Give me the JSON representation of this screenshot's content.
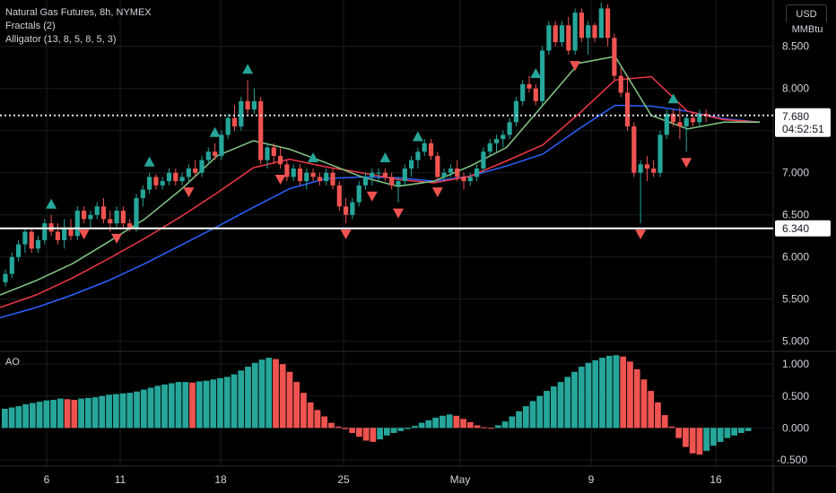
{
  "header": {
    "title": "Natural Gas Futures, 8h, NYMEX",
    "fractals_label": "Fractals (2)",
    "alligator_label": "Alligator (13, 8, 5, 8, 5, 3)",
    "currency_button": "USD",
    "unit": "MMBtu"
  },
  "colors": {
    "background": "#000000",
    "up": "#26a69a",
    "down": "#ef5350",
    "jaw": "#2962ff",
    "teeth": "#f23645",
    "lips": "#81c784",
    "grid": "#1a1c22"
  },
  "chart_data": [
    {
      "type": "candlestick",
      "title": "Natural Gas Futures, 8h, NYMEX",
      "y_ticks": [
        "8.500",
        "8.000",
        "7.500",
        "7.000",
        "6.500",
        "6.000",
        "5.500",
        "5.000"
      ],
      "ylim": [
        4.88,
        9.05
      ],
      "x_ticks": [
        "6",
        "11",
        "18",
        "25",
        "May",
        "9",
        "16"
      ],
      "last_price": {
        "value": 7.68,
        "label": "7.680",
        "countdown": "04:52:51"
      },
      "horizontal_line": {
        "value": 6.34,
        "label": "6.340"
      },
      "candles": [
        [
          5.7,
          5.85,
          5.65,
          5.8
        ],
        [
          5.8,
          6.05,
          5.75,
          6.0
        ],
        [
          6.0,
          6.2,
          5.95,
          6.15
        ],
        [
          6.15,
          6.35,
          6.05,
          6.3
        ],
        [
          6.3,
          6.35,
          6.05,
          6.1
        ],
        [
          6.1,
          6.25,
          6.05,
          6.2
        ],
        [
          6.2,
          6.45,
          6.15,
          6.4
        ],
        [
          6.4,
          6.5,
          6.25,
          6.3
        ],
        [
          6.3,
          6.4,
          6.15,
          6.2
        ],
        [
          6.2,
          6.45,
          6.1,
          6.35
        ],
        [
          6.35,
          6.45,
          6.2,
          6.25
        ],
        [
          6.25,
          6.6,
          6.2,
          6.55
        ],
        [
          6.55,
          6.6,
          6.4,
          6.45
        ],
        [
          6.45,
          6.55,
          6.35,
          6.5
        ],
        [
          6.5,
          6.65,
          6.45,
          6.6
        ],
        [
          6.6,
          6.7,
          6.4,
          6.45
        ],
        [
          6.45,
          6.55,
          6.3,
          6.4
        ],
        [
          6.4,
          6.6,
          6.35,
          6.55
        ],
        [
          6.55,
          6.6,
          6.35,
          6.4
        ],
        [
          6.4,
          6.45,
          6.3,
          6.35
        ],
        [
          6.35,
          6.75,
          6.3,
          6.7
        ],
        [
          6.7,
          6.85,
          6.6,
          6.8
        ],
        [
          6.8,
          7.0,
          6.75,
          6.95
        ],
        [
          6.95,
          6.98,
          6.8,
          6.85
        ],
        [
          6.85,
          6.95,
          6.8,
          6.9
        ],
        [
          6.9,
          7.05,
          6.85,
          7.0
        ],
        [
          7.0,
          7.05,
          6.85,
          6.9
        ],
        [
          6.9,
          7.0,
          6.85,
          6.95
        ],
        [
          6.95,
          7.1,
          6.9,
          7.05
        ],
        [
          7.05,
          7.15,
          6.95,
          7.0
        ],
        [
          7.0,
          7.2,
          6.95,
          7.15
        ],
        [
          7.15,
          7.3,
          7.1,
          7.25
        ],
        [
          7.25,
          7.35,
          7.15,
          7.2
        ],
        [
          7.2,
          7.5,
          7.15,
          7.45
        ],
        [
          7.45,
          7.7,
          7.4,
          7.65
        ],
        [
          7.65,
          7.8,
          7.5,
          7.55
        ],
        [
          7.55,
          7.9,
          7.5,
          7.85
        ],
        [
          7.85,
          8.1,
          7.7,
          7.75
        ],
        [
          7.75,
          8.0,
          7.7,
          7.85
        ],
        [
          7.85,
          7.9,
          7.1,
          7.15
        ],
        [
          7.15,
          7.35,
          7.05,
          7.3
        ],
        [
          7.3,
          7.35,
          7.1,
          7.2
        ],
        [
          7.2,
          7.3,
          7.05,
          7.1
        ],
        [
          7.1,
          7.15,
          6.9,
          6.95
        ],
        [
          6.95,
          7.1,
          6.9,
          7.05
        ],
        [
          7.05,
          7.1,
          6.85,
          6.9
        ],
        [
          6.9,
          7.05,
          6.8,
          7.0
        ],
        [
          7.0,
          7.05,
          6.9,
          6.95
        ],
        [
          6.95,
          7.0,
          6.85,
          6.9
        ],
        [
          6.9,
          7.05,
          6.85,
          7.0
        ],
        [
          7.0,
          7.05,
          6.8,
          6.85
        ],
        [
          6.85,
          6.9,
          6.55,
          6.6
        ],
        [
          6.6,
          6.7,
          6.4,
          6.5
        ],
        [
          6.5,
          6.7,
          6.45,
          6.65
        ],
        [
          6.65,
          6.9,
          6.6,
          6.85
        ],
        [
          6.85,
          7.0,
          6.8,
          6.95
        ],
        [
          6.95,
          7.05,
          6.85,
          7.0
        ],
        [
          7.0,
          7.05,
          6.9,
          7.0
        ],
        [
          7.0,
          7.05,
          6.9,
          6.95
        ],
        [
          6.95,
          7.0,
          6.8,
          6.85
        ],
        [
          6.85,
          6.95,
          6.65,
          6.9
        ],
        [
          6.9,
          7.1,
          6.85,
          7.05
        ],
        [
          7.05,
          7.2,
          6.95,
          7.15
        ],
        [
          7.15,
          7.3,
          7.05,
          7.25
        ],
        [
          7.25,
          7.4,
          7.2,
          7.35
        ],
        [
          7.35,
          7.4,
          7.15,
          7.2
        ],
        [
          7.2,
          7.25,
          6.9,
          6.95
        ],
        [
          6.95,
          7.05,
          6.9,
          7.0
        ],
        [
          7.0,
          7.1,
          6.95,
          7.05
        ],
        [
          7.05,
          7.15,
          6.9,
          6.95
        ],
        [
          6.95,
          7.0,
          6.8,
          6.9
        ],
        [
          6.9,
          7.0,
          6.85,
          6.95
        ],
        [
          6.95,
          7.1,
          6.9,
          7.05
        ],
        [
          7.05,
          7.3,
          7.0,
          7.25
        ],
        [
          7.25,
          7.4,
          7.2,
          7.35
        ],
        [
          7.35,
          7.45,
          7.25,
          7.4
        ],
        [
          7.4,
          7.5,
          7.3,
          7.45
        ],
        [
          7.45,
          7.65,
          7.4,
          7.6
        ],
        [
          7.6,
          7.9,
          7.55,
          7.85
        ],
        [
          7.85,
          8.1,
          7.8,
          8.05
        ],
        [
          8.05,
          8.15,
          7.95,
          8.0
        ],
        [
          8.0,
          8.05,
          7.8,
          7.85
        ],
        [
          7.85,
          8.5,
          7.8,
          8.45
        ],
        [
          8.45,
          8.8,
          8.4,
          8.75
        ],
        [
          8.75,
          8.8,
          8.5,
          8.55
        ],
        [
          8.55,
          8.8,
          8.5,
          8.75
        ],
        [
          8.75,
          8.85,
          8.4,
          8.45
        ],
        [
          8.45,
          8.95,
          8.4,
          8.9
        ],
        [
          8.9,
          8.95,
          8.55,
          8.6
        ],
        [
          8.6,
          8.8,
          8.4,
          8.75
        ],
        [
          8.75,
          8.78,
          8.55,
          8.6
        ],
        [
          8.6,
          9.02,
          8.6,
          8.95
        ],
        [
          8.95,
          9.0,
          8.5,
          8.6
        ],
        [
          8.6,
          8.65,
          8.1,
          8.15
        ],
        [
          8.15,
          8.25,
          7.9,
          7.95
        ],
        [
          7.95,
          8.15,
          7.5,
          7.55
        ],
        [
          7.55,
          7.6,
          6.95,
          7.0
        ],
        [
          7.0,
          7.15,
          6.4,
          7.1
        ],
        [
          7.1,
          7.2,
          6.9,
          7.05
        ],
        [
          7.05,
          7.15,
          6.95,
          7.0
        ],
        [
          7.0,
          7.5,
          6.95,
          7.45
        ],
        [
          7.45,
          7.75,
          7.4,
          7.7
        ],
        [
          7.7,
          7.75,
          7.55,
          7.6
        ],
        [
          7.6,
          7.78,
          7.4,
          7.55
        ],
        [
          7.55,
          7.7,
          7.25,
          7.65
        ],
        [
          7.65,
          7.72,
          7.55,
          7.6
        ],
        [
          7.6,
          7.75,
          7.55,
          7.7
        ],
        [
          7.7,
          7.75,
          7.6,
          7.68
        ]
      ],
      "fractal_up_bars": [
        7,
        22,
        32,
        37,
        47,
        58,
        63,
        81,
        91,
        102
      ],
      "fractal_down_bars": [
        12,
        17,
        28,
        42,
        52,
        56,
        60,
        66,
        87,
        97,
        104
      ],
      "alligator": [
        {
          "name": "Jaw",
          "color": "#2962ff",
          "values": [
            5.28,
            5.4,
            5.55,
            5.72,
            5.92,
            6.14,
            6.36,
            6.59,
            6.81,
            6.93,
            6.95,
            6.94,
            6.9,
            6.96,
            7.08,
            7.22,
            7.52,
            7.8,
            7.79,
            7.73,
            7.64,
            7.6
          ]
        },
        {
          "name": "Teeth",
          "color": "#f23645",
          "values": [
            5.4,
            5.55,
            5.75,
            5.98,
            6.22,
            6.48,
            6.76,
            7.06,
            7.16,
            7.07,
            7.0,
            6.92,
            6.88,
            6.96,
            7.14,
            7.33,
            7.7,
            8.1,
            8.14,
            7.73,
            7.63,
            7.6
          ]
        },
        {
          "name": "Lips",
          "color": "#81c784",
          "values": [
            5.55,
            5.72,
            5.92,
            6.18,
            6.45,
            6.8,
            7.2,
            7.38,
            7.28,
            7.12,
            6.95,
            6.84,
            6.9,
            7.08,
            7.3,
            7.8,
            8.3,
            8.38,
            7.68,
            7.52,
            7.6,
            7.6
          ]
        }
      ]
    },
    {
      "type": "bar",
      "title": "AO",
      "y_ticks": [
        "1.000",
        "0.500",
        "0.000",
        "-0.500"
      ],
      "ylim": [
        -0.6,
        1.2
      ],
      "values": [
        0.3,
        0.32,
        0.34,
        0.37,
        0.39,
        0.41,
        0.43,
        0.44,
        0.46,
        0.45,
        0.44,
        0.46,
        0.47,
        0.48,
        0.5,
        0.52,
        0.53,
        0.54,
        0.55,
        0.57,
        0.6,
        0.63,
        0.66,
        0.68,
        0.7,
        0.72,
        0.72,
        0.71,
        0.73,
        0.74,
        0.76,
        0.78,
        0.8,
        0.84,
        0.9,
        0.96,
        1.02,
        1.07,
        1.1,
        1.08,
        1.0,
        0.88,
        0.72,
        0.55,
        0.4,
        0.28,
        0.18,
        0.08,
        0.02,
        -0.02,
        -0.08,
        -0.14,
        -0.2,
        -0.22,
        -0.18,
        -0.12,
        -0.08,
        -0.05,
        -0.02,
        0.03,
        0.08,
        0.12,
        0.16,
        0.19,
        0.21,
        0.19,
        0.14,
        0.09,
        0.04,
        0.01,
        0.0,
        0.04,
        0.1,
        0.18,
        0.26,
        0.34,
        0.42,
        0.5,
        0.58,
        0.65,
        0.72,
        0.8,
        0.88,
        0.96,
        1.02,
        1.06,
        1.1,
        1.13,
        1.14,
        1.12,
        1.04,
        0.92,
        0.76,
        0.58,
        0.4,
        0.2,
        0.02,
        -0.16,
        -0.3,
        -0.4,
        -0.42,
        -0.36,
        -0.28,
        -0.22,
        -0.16,
        -0.12,
        -0.08,
        -0.05
      ]
    }
  ]
}
